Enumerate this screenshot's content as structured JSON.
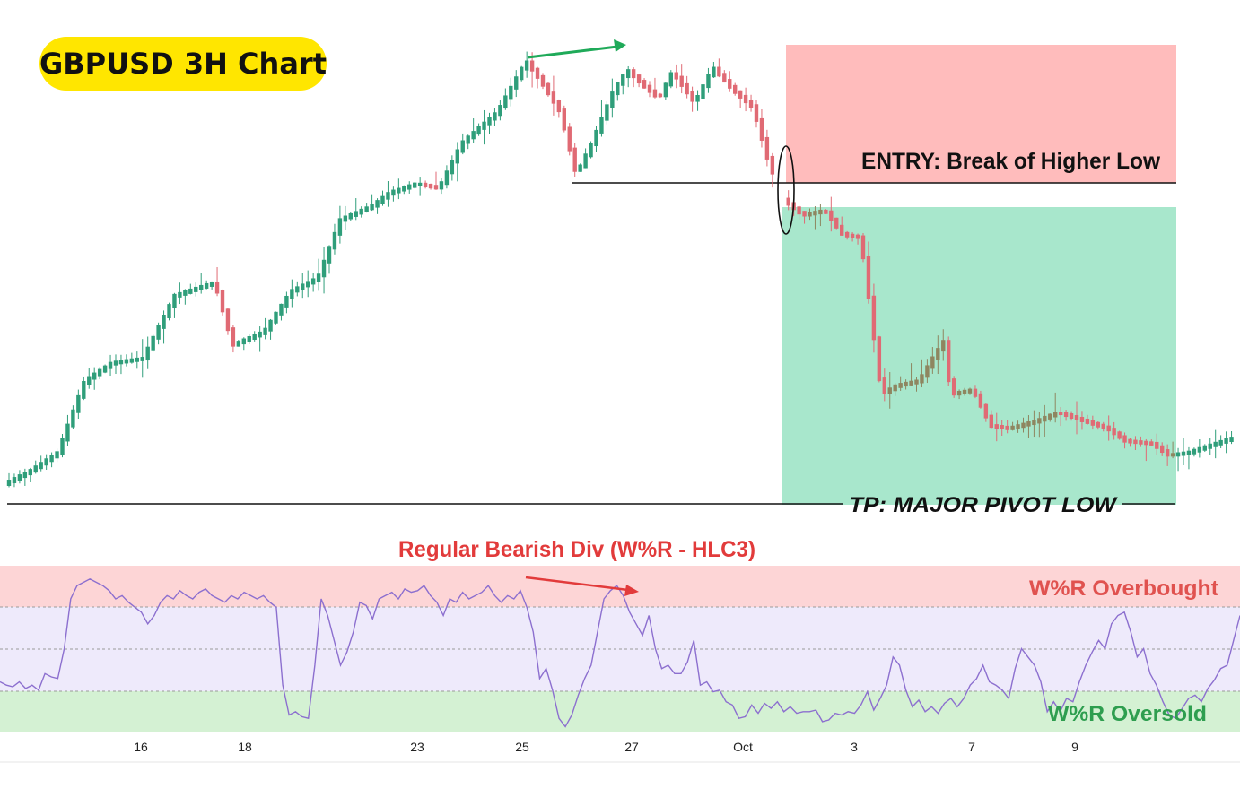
{
  "title": "GBPUSD 3H Chart",
  "annotations": {
    "entry": "ENTRY: Break of Higher Low",
    "tp": "TP: MAJOR PIVOT LOW",
    "divergence": "Regular Bearish Div (W%R - HLC3)",
    "overbought": "W%R Overbought",
    "oversold": "W%R Oversold"
  },
  "colors": {
    "bull": "#2f9e7a",
    "bear": "#e06a74",
    "bull_in_zone": "#8e8660",
    "stop_zone": "#ffbcbc",
    "target_zone": "#a8e7cc",
    "overbought_band": "#fdd5d6",
    "mid_band": "#eeeafb",
    "oversold_band": "#d4f1d3",
    "wr_line": "#8c6fcf",
    "div_arrow_price": "#1faa59",
    "div_arrow_wr": "#e23b3b",
    "badge": "#ffe600"
  },
  "chart_data": [
    {
      "type": "candlestick",
      "title": "GBPUSD 3H Chart",
      "x_tick_labels": [
        "16",
        "18",
        "23",
        "25",
        "27",
        "Oct",
        "3",
        "7",
        "9"
      ],
      "levels": {
        "entry_higher_low": "Break of Higher Low",
        "take_profit": "Major Pivot Low"
      },
      "grid": false,
      "note": "OHLC price series (approximate relative values, price axis not labelled)"
    },
    {
      "type": "line",
      "name": "W%R",
      "ylim": [
        -100,
        0
      ],
      "bands": {
        "overbought": [
          -20,
          0
        ],
        "oversold": [
          -100,
          -80
        ]
      },
      "values": [
        -70,
        -72,
        -73,
        -70,
        -74,
        -72,
        -75,
        -65,
        -67,
        -68,
        -50,
        -20,
        -12,
        -10,
        -8,
        -10,
        -12,
        -15,
        -20,
        -18,
        -22,
        -25,
        -28,
        -35,
        -30,
        -22,
        -18,
        -20,
        -15,
        -18,
        -20,
        -16,
        -14,
        -18,
        -20,
        -22,
        -18,
        -20,
        -16,
        -18,
        -20,
        -18,
        -22,
        -25,
        -72,
        -90,
        -88,
        -91,
        -92,
        -60,
        -20,
        -30,
        -45,
        -60,
        -52,
        -40,
        -22,
        -24,
        -32,
        -20,
        -18,
        -16,
        -20,
        -14,
        -16,
        -15,
        -12,
        -18,
        -22,
        -30,
        -20,
        -22,
        -16,
        -20,
        -18,
        -16,
        -12,
        -18,
        -22,
        -18,
        -20,
        -15,
        -25,
        -40,
        -68,
        -62,
        -75,
        -92,
        -97,
        -90,
        -78,
        -68,
        -60,
        -40,
        -20,
        -15,
        -12,
        -18,
        -28,
        -35,
        -42,
        -30,
        -50,
        -62,
        -60,
        -65,
        -65,
        -58,
        -45,
        -72,
        -70,
        -76,
        -75,
        -82,
        -84,
        -92,
        -91,
        -84,
        -89,
        -83,
        -86,
        -82,
        -88,
        -85,
        -89,
        -88,
        -88,
        -87,
        -94,
        -93,
        -89,
        -90,
        -88,
        -89,
        -84,
        -76,
        -87,
        -80,
        -72,
        -55,
        -60,
        -75,
        -85,
        -81,
        -88,
        -85,
        -89,
        -83,
        -80,
        -85,
        -80,
        -72,
        -68,
        -60,
        -70,
        -72,
        -75,
        -80,
        -62,
        -50,
        -55,
        -60,
        -70,
        -88,
        -82,
        -88,
        -80,
        -82,
        -70,
        -60,
        -52,
        -45,
        -50,
        -35,
        -30,
        -28,
        -40,
        -55,
        -50,
        -65,
        -72,
        -82,
        -90,
        -92,
        -86,
        -80,
        -78,
        -82,
        -74,
        -69,
        -62,
        -60,
        -45,
        -30
      ]
    }
  ]
}
